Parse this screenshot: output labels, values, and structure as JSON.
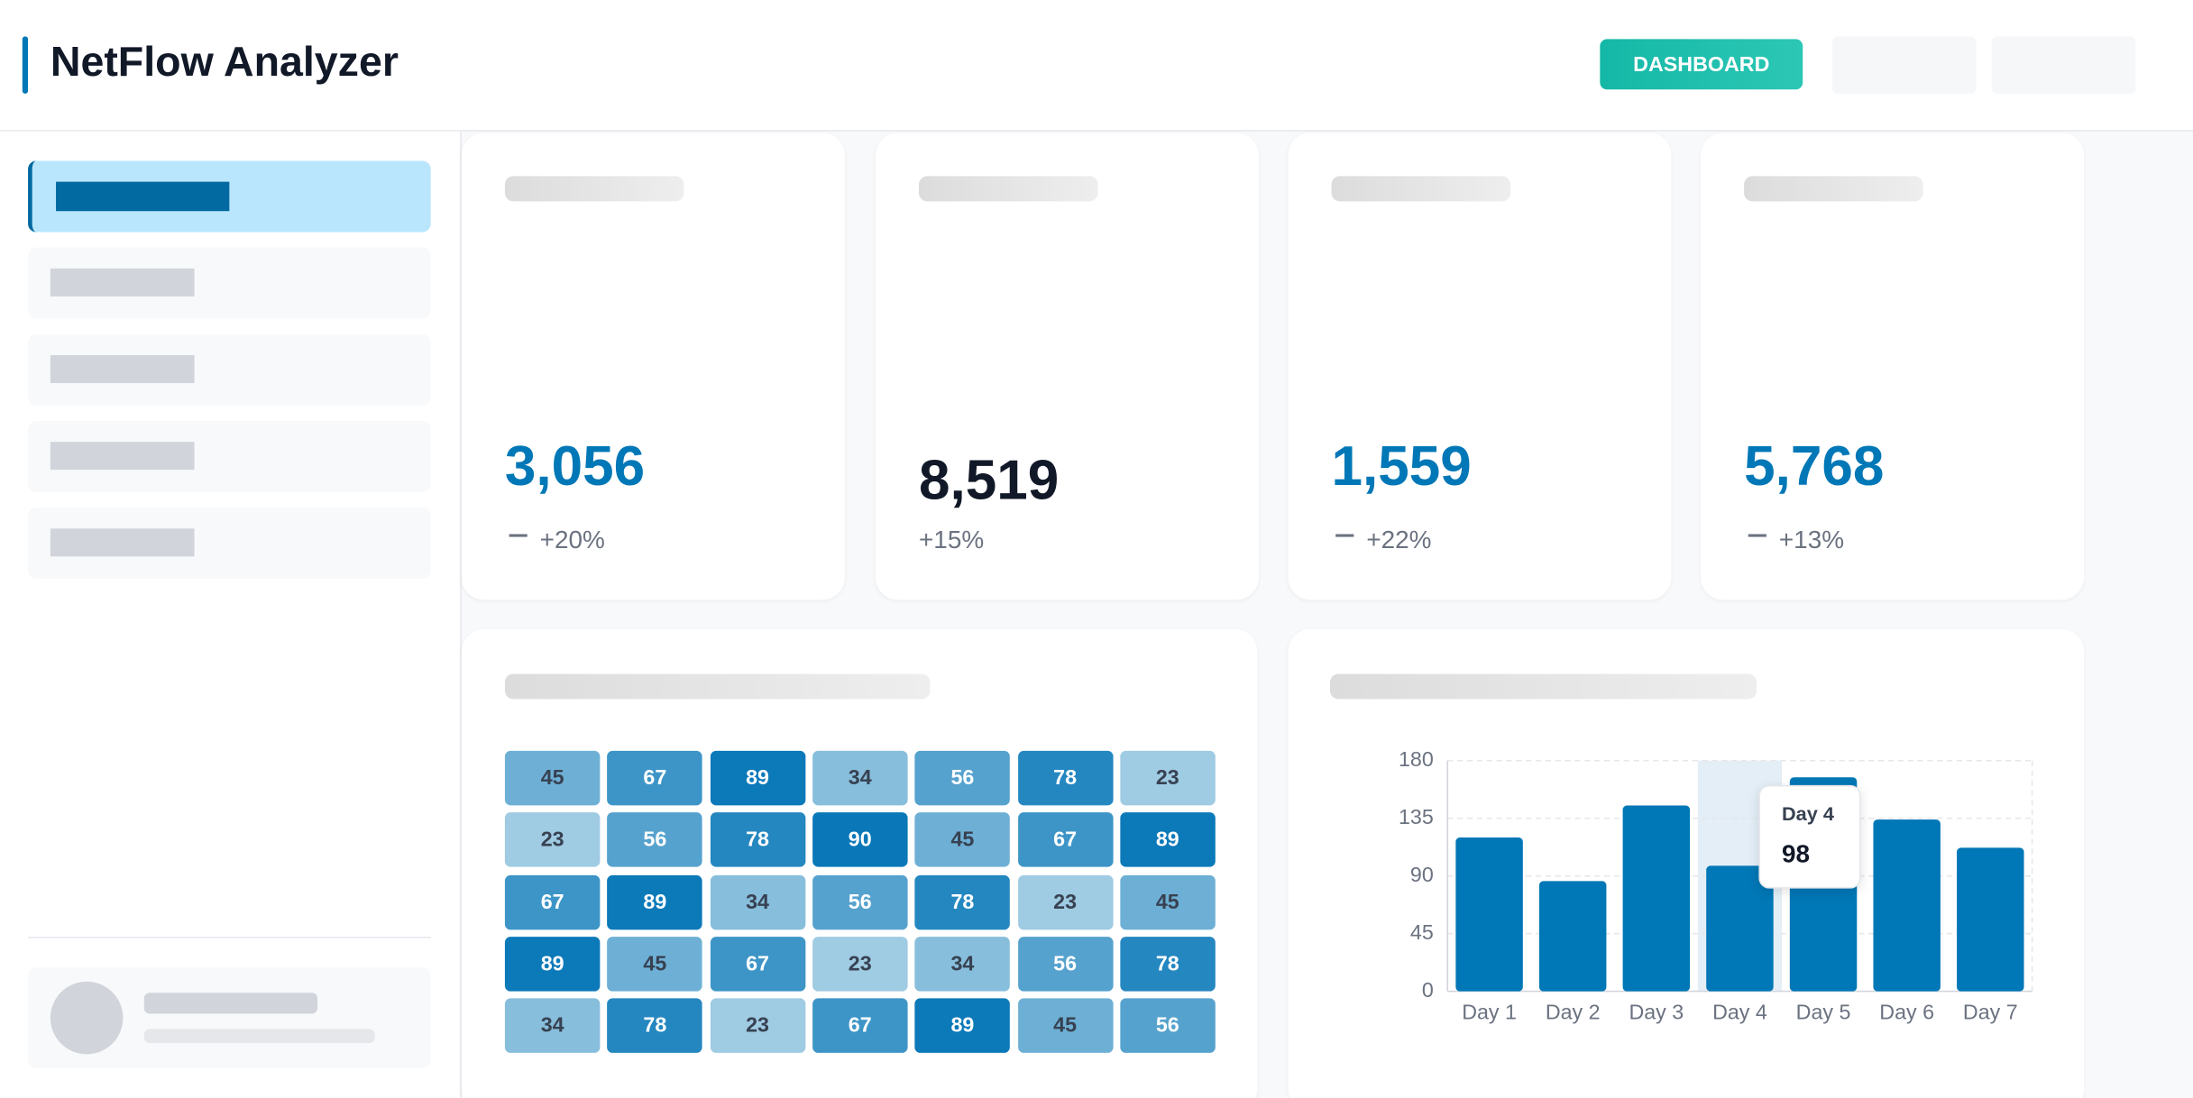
{
  "header": {
    "title": "NetFlow Analyzer",
    "button": "DASHBOARD"
  },
  "kpis": [
    {
      "value": "3,056",
      "change": "+20%"
    },
    {
      "value": "8,519",
      "change": "+15%"
    },
    {
      "value": "1,559",
      "change": "+22%"
    },
    {
      "value": "5,768",
      "change": "+13%"
    }
  ],
  "heatmap": {
    "rows": [
      [
        45,
        67,
        89,
        34,
        56,
        78,
        23
      ],
      [
        23,
        56,
        78,
        90,
        45,
        67,
        89
      ],
      [
        67,
        89,
        34,
        56,
        78,
        23,
        45
      ],
      [
        89,
        45,
        67,
        23,
        34,
        56,
        78
      ],
      [
        34,
        78,
        23,
        67,
        89,
        45,
        56
      ]
    ]
  },
  "chart_data": {
    "type": "bar",
    "categories": [
      "Day 1",
      "Day 2",
      "Day 3",
      "Day 4",
      "Day 5",
      "Day 6",
      "Day 7"
    ],
    "values": [
      120,
      86,
      145,
      98,
      167,
      134,
      112
    ],
    "color": "#0077b6",
    "ylim": [
      0,
      180
    ],
    "yticks": [
      0,
      45,
      90,
      135,
      180
    ],
    "grid": true,
    "highlight_index": 3
  }
}
